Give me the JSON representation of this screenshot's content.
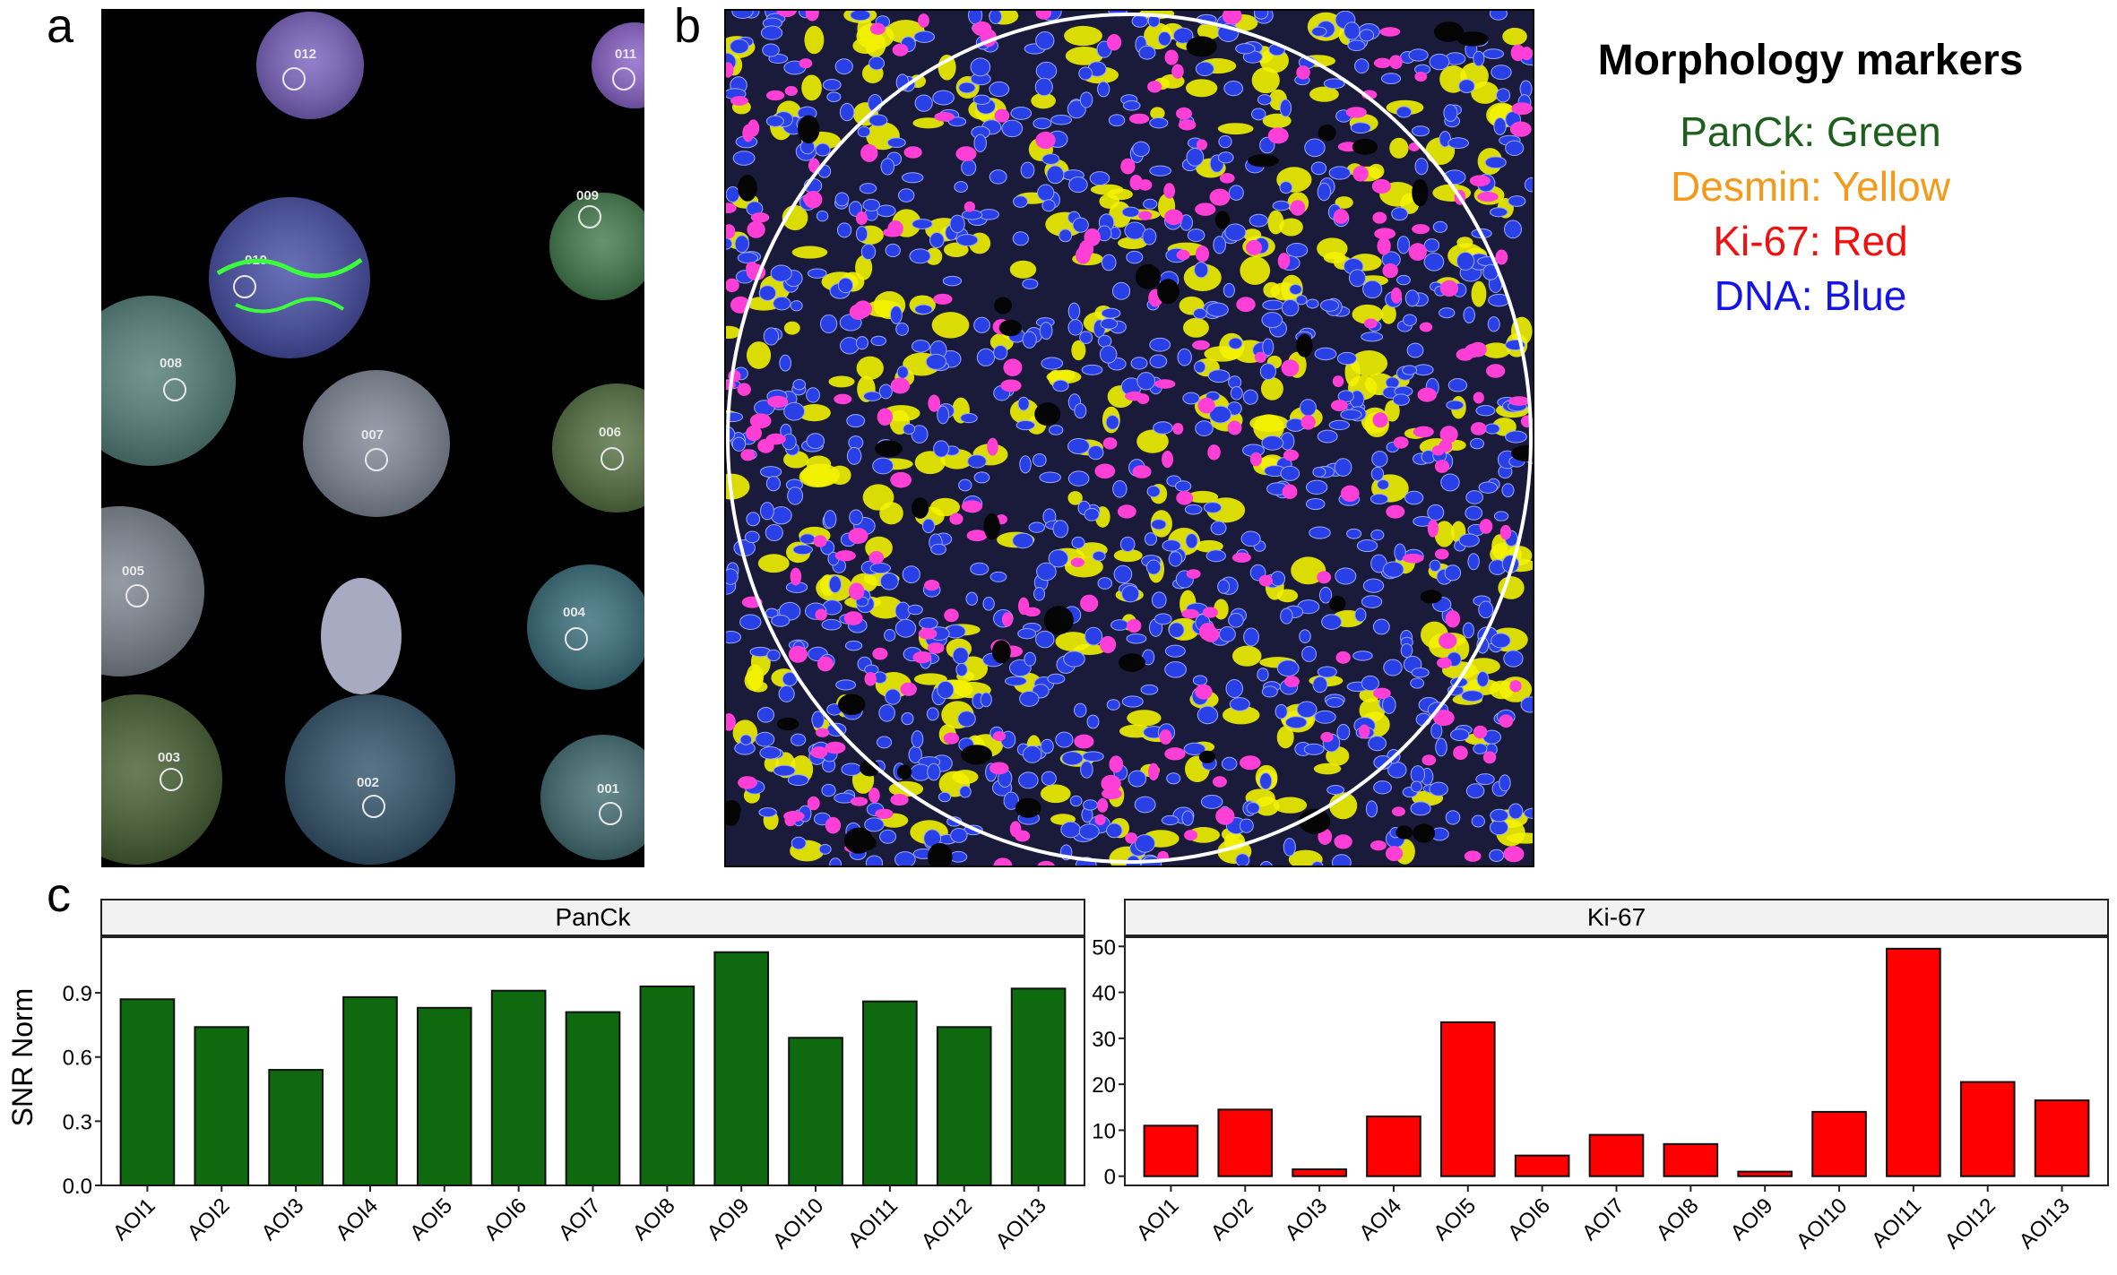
{
  "panel_labels": {
    "a": "a",
    "b": "b",
    "c": "c"
  },
  "panel_a": {
    "cores": [
      {
        "id": "012",
        "color": "#8a6fd6"
      },
      {
        "id": "011",
        "color": "#9a6fe0"
      },
      {
        "id": "010",
        "color": "#4f58b8"
      },
      {
        "id": "009",
        "color": "#4a8a55"
      },
      {
        "id": "008",
        "color": "#5d8c86"
      },
      {
        "id": "007",
        "color": "#8f98a8"
      },
      {
        "id": "006",
        "color": "#5e7e4a"
      },
      {
        "id": "005",
        "color": "#8a94a0"
      },
      {
        "id": "004",
        "color": "#3f7a88"
      },
      {
        "id": "003",
        "color": "#4f6a3a"
      },
      {
        "id": "002",
        "color": "#3a5e78"
      },
      {
        "id": "001",
        "color": "#4a7a80"
      }
    ]
  },
  "legend": {
    "title": "Morphology markers",
    "entries": [
      {
        "text": "PanCk: Green",
        "color": "#1e5f1e"
      },
      {
        "text": "Desmin: Yellow",
        "color": "#f49a1a"
      },
      {
        "text": "Ki-67: Red",
        "color": "#f01010"
      },
      {
        "text": "DNA: Blue",
        "color": "#1414e6"
      }
    ]
  },
  "chart_data": [
    {
      "type": "bar",
      "facet": "PanCk",
      "ylabel": "SNR Norm",
      "categories": [
        "AOI1",
        "AOI2",
        "AOI3",
        "AOI4",
        "AOI5",
        "AOI6",
        "AOI7",
        "AOI8",
        "AOI9",
        "AOI10",
        "AOI11",
        "AOI12",
        "AOI13"
      ],
      "values": [
        0.87,
        0.74,
        0.54,
        0.88,
        0.83,
        0.91,
        0.81,
        0.93,
        1.09,
        0.69,
        0.86,
        0.74,
        0.92
      ],
      "ylim": [
        0,
        1.16
      ],
      "yticks": [
        0.0,
        0.3,
        0.6,
        0.9
      ],
      "ytick_labels": [
        "0.0",
        "0.3",
        "0.6",
        "0.9"
      ],
      "bar_color": "#0f6a0f"
    },
    {
      "type": "bar",
      "facet": "Ki-67",
      "categories": [
        "AOI1",
        "AOI2",
        "AOI3",
        "AOI4",
        "AOI5",
        "AOI6",
        "AOI7",
        "AOI8",
        "AOI9",
        "AOI10",
        "AOI11",
        "AOI12",
        "AOI13"
      ],
      "values": [
        11,
        14.5,
        1.5,
        13,
        33.5,
        4.5,
        9,
        7,
        1,
        14,
        49.5,
        20.5,
        16.5
      ],
      "ylim": [
        -2,
        52
      ],
      "yticks": [
        0,
        10,
        20,
        30,
        40,
        50
      ],
      "ytick_labels": [
        "0",
        "10",
        "20",
        "30",
        "40",
        "50"
      ],
      "bar_color": "#ff0000"
    }
  ]
}
